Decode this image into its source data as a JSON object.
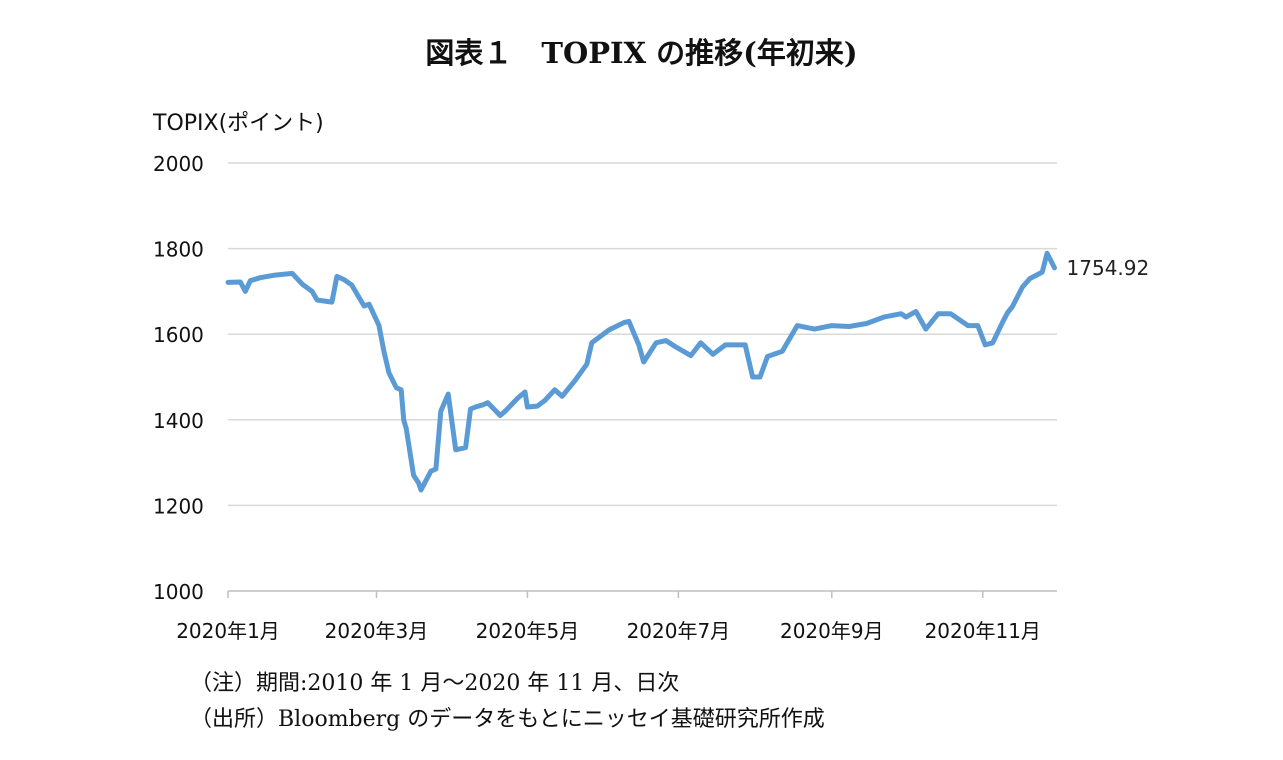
{
  "chart_data": {
    "type": "line",
    "title": "図表１　TOPIX の推移(年初来)",
    "ylabel": "TOPIX(ポイント)",
    "xlabel": "",
    "ylim": [
      1000,
      2000
    ],
    "yticks": [
      1000,
      1200,
      1400,
      1600,
      1800,
      2000
    ],
    "xticks": [
      "2020年1月",
      "2020年3月",
      "2020年5月",
      "2020年7月",
      "2020年9月",
      "2020年11月"
    ],
    "x_range": [
      "2020-01-01",
      "2020-12-01"
    ],
    "grid": true,
    "line_color": "#5B9BD5",
    "last_value_label": "1754.92",
    "series": [
      {
        "x": [
          "2020-01-01",
          "2020-01-06",
          "2020-01-08",
          "2020-01-10",
          "2020-01-14",
          "2020-01-20",
          "2020-01-27",
          "2020-01-31",
          "2020-02-04",
          "2020-02-06",
          "2020-02-12",
          "2020-02-14",
          "2020-02-17",
          "2020-02-20",
          "2020-02-25",
          "2020-02-27",
          "2020-03-02",
          "2020-03-04",
          "2020-03-06",
          "2020-03-09",
          "2020-03-11",
          "2020-03-12",
          "2020-03-13",
          "2020-03-16",
          "2020-03-18",
          "2020-03-19",
          "2020-03-23",
          "2020-03-25",
          "2020-03-27",
          "2020-03-30",
          "2020-04-02",
          "2020-04-06",
          "2020-04-08",
          "2020-04-10",
          "2020-04-13",
          "2020-04-15",
          "2020-04-20",
          "2020-04-22",
          "2020-04-27",
          "2020-04-30",
          "2020-05-01",
          "2020-05-05",
          "2020-05-08",
          "2020-05-12",
          "2020-05-15",
          "2020-05-20",
          "2020-05-25",
          "2020-05-27",
          "2020-06-03",
          "2020-06-09",
          "2020-06-11",
          "2020-06-15",
          "2020-06-17",
          "2020-06-22",
          "2020-06-26",
          "2020-06-30",
          "2020-07-06",
          "2020-07-10",
          "2020-07-15",
          "2020-07-20",
          "2020-07-28",
          "2020-07-31",
          "2020-08-03",
          "2020-08-06",
          "2020-08-12",
          "2020-08-18",
          "2020-08-25",
          "2020-09-01",
          "2020-09-08",
          "2020-09-15",
          "2020-09-22",
          "2020-09-29",
          "2020-10-01",
          "2020-10-05",
          "2020-10-09",
          "2020-10-14",
          "2020-10-19",
          "2020-10-26",
          "2020-10-30",
          "2020-11-02",
          "2020-11-05",
          "2020-11-09",
          "2020-11-11",
          "2020-11-13",
          "2020-11-17",
          "2020-11-20",
          "2020-11-25",
          "2020-11-27",
          "2020-11-30"
        ],
        "values": [
          1721,
          1722,
          1700,
          1725,
          1732,
          1738,
          1742,
          1717,
          1700,
          1680,
          1675,
          1735,
          1727,
          1715,
          1666,
          1670,
          1620,
          1560,
          1510,
          1475,
          1470,
          1400,
          1380,
          1270,
          1253,
          1236,
          1280,
          1285,
          1420,
          1460,
          1330,
          1335,
          1425,
          1430,
          1435,
          1440,
          1410,
          1420,
          1450,
          1465,
          1430,
          1432,
          1445,
          1470,
          1455,
          1490,
          1530,
          1580,
          1610,
          1627,
          1630,
          1575,
          1535,
          1580,
          1585,
          1570,
          1550,
          1580,
          1553,
          1575,
          1575,
          1500,
          1500,
          1548,
          1560,
          1620,
          1612,
          1620,
          1618,
          1625,
          1640,
          1648,
          1640,
          1653,
          1612,
          1648,
          1648,
          1620,
          1620,
          1575,
          1580,
          1628,
          1650,
          1665,
          1710,
          1730,
          1745,
          1789,
          1754.92
        ]
      }
    ]
  },
  "notes": {
    "period": "（注）期間:2010 年 1 月～2020 年 11 月、日次",
    "source": "（出所）Bloomberg のデータをもとにニッセイ基礎研究所作成"
  }
}
